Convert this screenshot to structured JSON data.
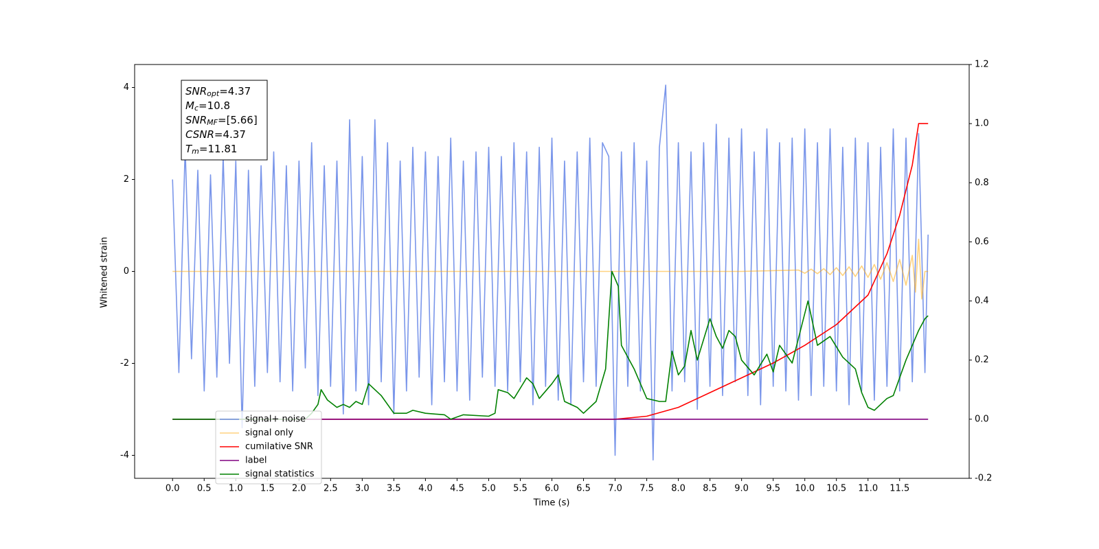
{
  "chart_data": {
    "type": "line",
    "xlabel": "Time (s)",
    "ylabel": "Whitened strain",
    "xlim": [
      -0.6,
      12.6
    ],
    "ylim": [
      -4.5,
      4.5
    ],
    "y2lim": [
      -0.2,
      1.2
    ],
    "xticks": [
      {
        "value": 0,
        "label": "0.0"
      },
      0.5,
      {
        "value": 1,
        "label": "1.0"
      },
      1.5,
      {
        "value": 2,
        "label": "2.0"
      },
      2.5,
      {
        "value": 3,
        "label": "3.0"
      },
      3.5,
      {
        "value": 4,
        "label": "4.0"
      },
      4.5,
      {
        "value": 5,
        "label": "5.0"
      },
      5.5,
      {
        "value": 6,
        "label": "6.0"
      },
      6.5,
      {
        "value": 7,
        "label": "7.0"
      },
      7.5,
      {
        "value": 8,
        "label": "8.0"
      },
      8.5,
      {
        "value": 9,
        "label": "9.0"
      },
      9.5,
      {
        "value": 10,
        "label": "10.0"
      },
      10.5,
      {
        "value": 11,
        "label": "11.0"
      },
      11.5
    ],
    "yticks": [
      -4,
      -2,
      0,
      2,
      4
    ],
    "y2ticks": [
      -0.2,
      {
        "value": 0,
        "label": "0.0"
      },
      0.2,
      0.4,
      0.6,
      0.8,
      {
        "value": 1,
        "label": "1.0"
      },
      1.2
    ],
    "annotation": [
      {
        "main": "SNR",
        "sub": "opt",
        "rest": "=4.37"
      },
      {
        "main": "M",
        "sub": "c",
        "rest": "=10.8"
      },
      {
        "main": "SNR",
        "sub": "MF",
        "rest": "=[5.66]"
      },
      {
        "main": "CSNR",
        "rest": "=4.37"
      },
      {
        "main": "T",
        "sub": "m",
        "rest": "=11.81"
      }
    ],
    "series": [
      {
        "name": "signal+ noise",
        "color": "#4169e1",
        "alpha": 0.7,
        "x": [
          0.0,
          0.1,
          0.2,
          0.3,
          0.4,
          0.5,
          0.6,
          0.7,
          0.8,
          0.9,
          1.0,
          1.1,
          1.2,
          1.3,
          1.4,
          1.5,
          1.6,
          1.7,
          1.8,
          1.9,
          2.0,
          2.1,
          2.2,
          2.3,
          2.4,
          2.5,
          2.6,
          2.7,
          2.8,
          2.9,
          3.0,
          3.1,
          3.2,
          3.3,
          3.4,
          3.5,
          3.6,
          3.7,
          3.8,
          3.9,
          4.0,
          4.1,
          4.2,
          4.3,
          4.4,
          4.5,
          4.6,
          4.7,
          4.8,
          4.9,
          5.0,
          5.1,
          5.2,
          5.3,
          5.4,
          5.5,
          5.6,
          5.7,
          5.8,
          5.9,
          6.0,
          6.1,
          6.2,
          6.3,
          6.4,
          6.5,
          6.6,
          6.7,
          6.8,
          6.9,
          7.0,
          7.1,
          7.2,
          7.3,
          7.4,
          7.5,
          7.6,
          7.7,
          7.8,
          7.9,
          8.0,
          8.1,
          8.2,
          8.3,
          8.4,
          8.5,
          8.6,
          8.7,
          8.8,
          8.9,
          9.0,
          9.1,
          9.2,
          9.3,
          9.4,
          9.5,
          9.6,
          9.7,
          9.8,
          9.9,
          10.0,
          10.1,
          10.2,
          10.3,
          10.4,
          10.5,
          10.6,
          10.7,
          10.8,
          10.9,
          11.0,
          11.1,
          11.2,
          11.3,
          11.4,
          11.5,
          11.6,
          11.7,
          11.8,
          11.9,
          11.95
        ],
        "values": [
          2.0,
          -2.2,
          2.7,
          -1.9,
          2.2,
          -2.6,
          2.1,
          -2.3,
          2.5,
          -2.0,
          2.4,
          -3.4,
          2.2,
          -2.5,
          2.3,
          -2.2,
          2.6,
          -2.4,
          2.3,
          -2.6,
          2.4,
          -2.1,
          2.8,
          -2.7,
          2.3,
          -2.5,
          2.4,
          -3.1,
          3.3,
          -2.6,
          2.5,
          -2.9,
          3.3,
          -2.4,
          2.8,
          -3.1,
          2.4,
          -2.6,
          2.7,
          -2.3,
          2.6,
          -2.9,
          2.5,
          -2.4,
          2.9,
          -2.6,
          2.4,
          -2.8,
          2.6,
          -2.3,
          2.7,
          -2.5,
          2.5,
          -2.6,
          2.8,
          -2.4,
          2.6,
          -2.9,
          2.7,
          -2.5,
          2.9,
          -2.8,
          2.4,
          -2.9,
          2.6,
          -2.4,
          2.9,
          -2.5,
          2.8,
          2.5,
          -4.0,
          2.6,
          -2.5,
          2.8,
          -2.6,
          2.4,
          -4.1,
          2.7,
          4.05,
          -2.6,
          2.8,
          -2.4,
          2.6,
          -3.0,
          2.8,
          -2.5,
          3.2,
          -2.7,
          2.9,
          -2.4,
          3.1,
          -2.7,
          2.6,
          -2.9,
          3.1,
          -2.5,
          2.8,
          -2.6,
          2.9,
          -2.8,
          3.1,
          -2.7,
          2.8,
          -2.5,
          3.1,
          -2.6,
          2.7,
          -2.9,
          2.9,
          -2.6,
          2.8,
          -2.8,
          2.7,
          -2.5,
          3.1,
          -2.6,
          2.9,
          -2.4,
          3.0,
          -2.2,
          0.8
        ]
      },
      {
        "name": "signal only",
        "color": "orange",
        "alpha": 0.5,
        "x": [
          0,
          9.0,
          9.9,
          10.0,
          10.1,
          10.2,
          10.3,
          10.4,
          10.5,
          10.6,
          10.7,
          10.8,
          10.9,
          11.0,
          11.1,
          11.2,
          11.3,
          11.4,
          11.5,
          11.6,
          11.7,
          11.75,
          11.8,
          11.85,
          11.9,
          11.95
        ],
        "values": [
          0,
          0,
          0.03,
          -0.04,
          0.05,
          -0.05,
          0.06,
          -0.07,
          0.08,
          -0.09,
          0.1,
          -0.11,
          0.12,
          -0.13,
          0.15,
          -0.17,
          0.19,
          -0.22,
          0.26,
          -0.3,
          0.35,
          -0.45,
          0.7,
          -0.6,
          0,
          0
        ]
      },
      {
        "name": "cumilative SNR",
        "color": "red",
        "alpha": 1,
        "axis": "y2",
        "x": [
          0,
          7.0,
          7.5,
          8.0,
          8.5,
          9.0,
          9.5,
          10.0,
          10.5,
          11.0,
          11.3,
          11.5,
          11.7,
          11.75,
          11.8,
          11.95
        ],
        "values": [
          0,
          0,
          0.01,
          0.04,
          0.09,
          0.14,
          0.19,
          0.25,
          0.32,
          0.42,
          0.56,
          0.69,
          0.86,
          0.93,
          1.0,
          1.0
        ]
      },
      {
        "name": "label",
        "color": "purple",
        "alpha": 1,
        "axis": "y2",
        "x": [
          0,
          11.95
        ],
        "values": [
          0,
          0
        ]
      },
      {
        "name": "signal statistics",
        "color": "green",
        "alpha": 1,
        "axis": "y2",
        "x": [
          0,
          2.0,
          2.1,
          2.2,
          2.3,
          2.35,
          2.45,
          2.6,
          2.7,
          2.8,
          2.9,
          3.0,
          3.1,
          3.3,
          3.5,
          3.7,
          3.8,
          4.0,
          4.3,
          4.4,
          4.6,
          5.0,
          5.1,
          5.15,
          5.3,
          5.4,
          5.6,
          5.7,
          5.8,
          6.0,
          6.1,
          6.2,
          6.4,
          6.5,
          6.7,
          6.85,
          6.95,
          7.05,
          7.1,
          7.3,
          7.5,
          7.7,
          7.8,
          7.9,
          8.0,
          8.1,
          8.2,
          8.3,
          8.5,
          8.6,
          8.7,
          8.8,
          8.9,
          9.0,
          9.2,
          9.4,
          9.5,
          9.6,
          9.8,
          10.05,
          10.2,
          10.4,
          10.6,
          10.8,
          10.9,
          11.0,
          11.1,
          11.3,
          11.4,
          11.6,
          11.8,
          11.9,
          11.95
        ],
        "values": [
          0,
          0,
          0,
          0.02,
          0.05,
          0.1,
          0.065,
          0.04,
          0.05,
          0.04,
          0.06,
          0.05,
          0.12,
          0.08,
          0.02,
          0.02,
          0.03,
          0.02,
          0.015,
          0,
          0.015,
          0.01,
          0.02,
          0.1,
          0.09,
          0.07,
          0.14,
          0.12,
          0.07,
          0.12,
          0.15,
          0.06,
          0.04,
          0.02,
          0.06,
          0.17,
          0.5,
          0.45,
          0.25,
          0.17,
          0.07,
          0.06,
          0.06,
          0.23,
          0.15,
          0.18,
          0.3,
          0.2,
          0.34,
          0.28,
          0.24,
          0.3,
          0.28,
          0.2,
          0.15,
          0.22,
          0.16,
          0.25,
          0.19,
          0.4,
          0.25,
          0.28,
          0.21,
          0.17,
          0.09,
          0.04,
          0.03,
          0.07,
          0.08,
          0.2,
          0.3,
          0.34,
          0.35
        ]
      }
    ]
  }
}
